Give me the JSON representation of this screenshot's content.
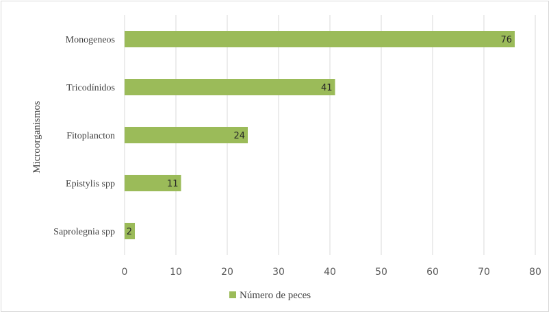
{
  "chart_data": {
    "type": "bar",
    "orientation": "horizontal",
    "title": "",
    "ylabel": "Microorganismos",
    "xlabel": "",
    "categories": [
      "Monogeneos",
      "Tricodínidos",
      "Fitoplancton",
      "Epistylis spp",
      "Saprolegnia spp"
    ],
    "series": [
      {
        "name": "Número de peces",
        "values": [
          76,
          41,
          24,
          11,
          2
        ],
        "color": "#9bbb59"
      }
    ],
    "xlim": [
      0,
      80
    ],
    "xticks": [
      0,
      10,
      20,
      30,
      40,
      50,
      60,
      70,
      80
    ],
    "grid": true,
    "legend_position": "bottom",
    "data_labels": true
  }
}
